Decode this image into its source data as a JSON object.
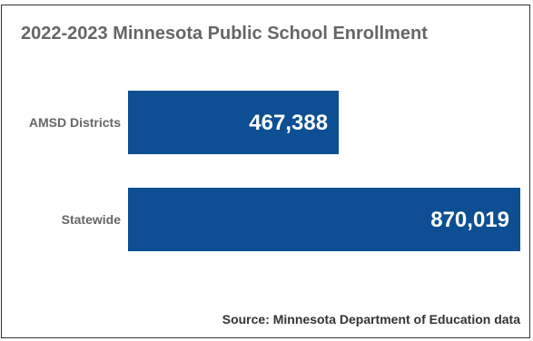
{
  "chart_data": {
    "type": "bar",
    "orientation": "horizontal",
    "title": "2022-2023 Minnesota Public School Enrollment",
    "source": "Source: Minnesota Department of Education data",
    "categories": [
      "AMSD Districts",
      "Statewide"
    ],
    "values": [
      467388,
      870019
    ],
    "value_labels": [
      "467,388",
      "870,019"
    ],
    "xlim": [
      0,
      870019
    ],
    "grid": false,
    "legend": "none",
    "bar_color": "#0d4f92",
    "label_color": "#666666"
  }
}
